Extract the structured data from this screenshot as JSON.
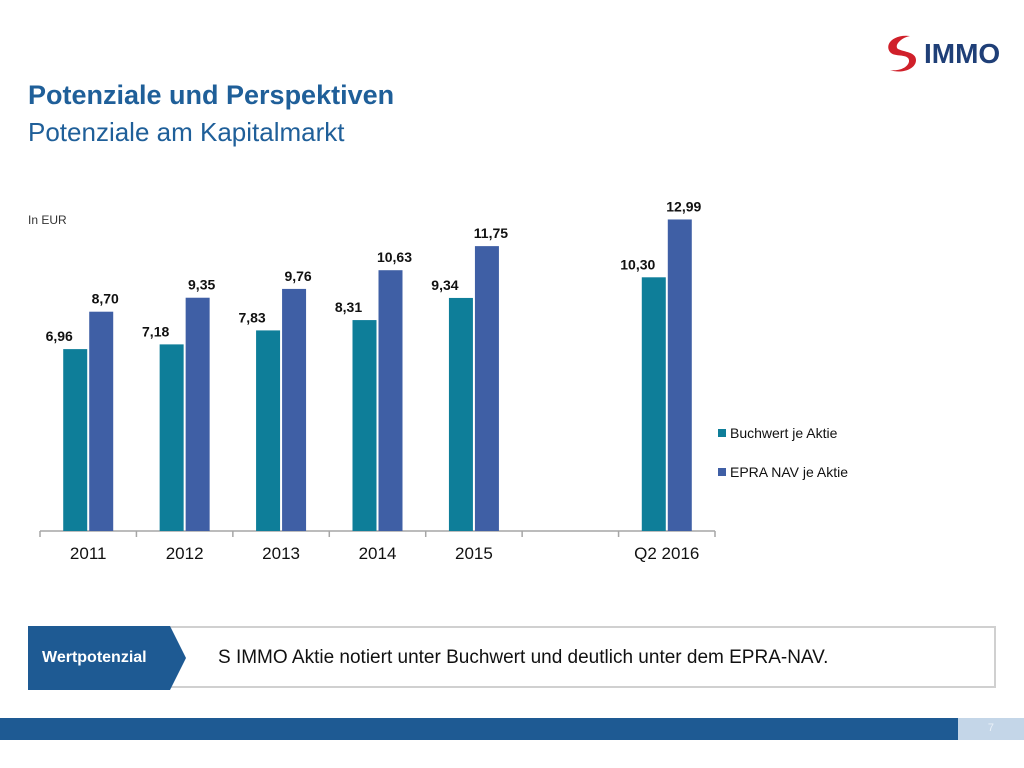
{
  "header": {
    "logo_text": "IMMO",
    "title": "Potenziale und Perspektiven",
    "subtitle": "Potenziale am Kapitalmarkt"
  },
  "colors": {
    "brand_blue": "#1f5f99",
    "series_book_value": "#0e7e99",
    "series_epra_nav": "#3f5fa5",
    "logo_red": "#d0202a",
    "footer_bar": "#1e5a93"
  },
  "chart_data": {
    "type": "bar",
    "title": "",
    "unit_label": "In EUR",
    "xlabel": "",
    "ylabel": "",
    "categories": [
      "2011",
      "2012",
      "2013",
      "2014",
      "2015",
      "",
      "Q2 2016"
    ],
    "series": [
      {
        "name": "Buchwert je Aktie",
        "values": [
          6.96,
          7.18,
          7.83,
          8.31,
          9.34,
          null,
          10.3
        ],
        "labels": [
          "6,96",
          "7,18",
          "7,83",
          "8,31",
          "9,34",
          "",
          "10,30"
        ]
      },
      {
        "name": "EPRA NAV je Aktie",
        "values": [
          8.7,
          9.35,
          9.76,
          10.63,
          11.75,
          null,
          12.99
        ],
        "labels": [
          "8,70",
          "9,35",
          "9,76",
          "10,63",
          "11,75",
          "",
          "12,99"
        ]
      }
    ],
    "grid": false,
    "legend": "right"
  },
  "callout": {
    "tag": "Wertpotenzial",
    "text": "S IMMO Aktie notiert unter Buchwert und deutlich unter dem EPRA-NAV."
  },
  "footer": {
    "page_number": "7"
  }
}
